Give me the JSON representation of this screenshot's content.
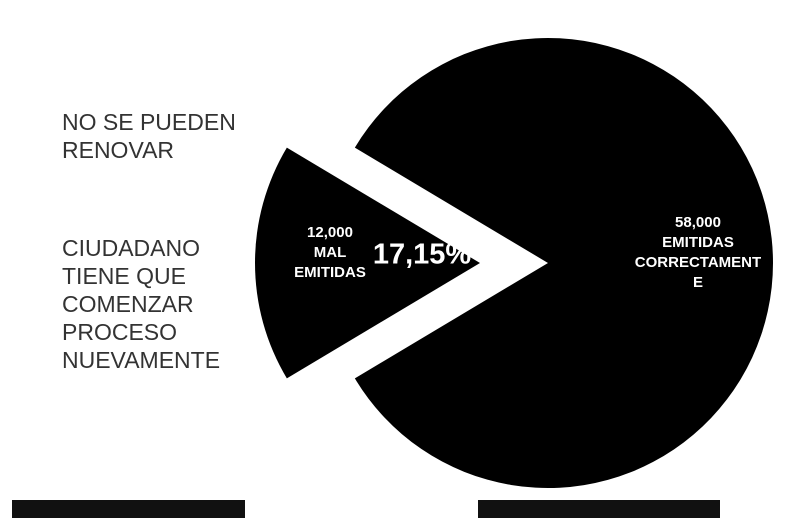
{
  "chart_data": {
    "type": "pie",
    "categories": [
      "MAL EMITIDAS",
      "EMITIDAS CORRECTAMENTE"
    ],
    "values": [
      12000,
      58000
    ],
    "value_labels": [
      "12,000",
      "58,000"
    ],
    "color": "#000000",
    "percent_label": "17,15%",
    "notes": [
      "NO SE PUEDEN RENOVAR",
      "CIUDADANO TIENE QUE COMENZAR PROCESO NUEVAMENTE"
    ]
  }
}
